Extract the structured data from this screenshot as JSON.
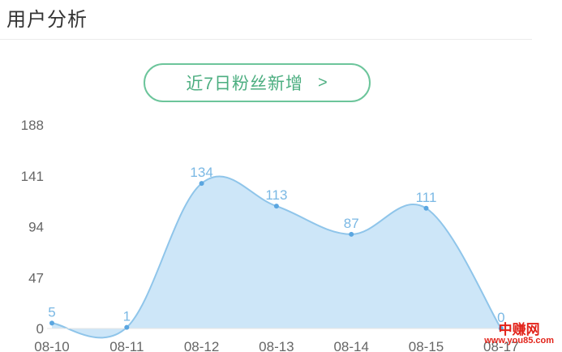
{
  "page": {
    "title": "用户分析"
  },
  "filter": {
    "label": "近7日粉丝新增",
    "chevron": ">",
    "chevron_icon": "chevron-right-icon"
  },
  "colors": {
    "accent": "#6cc59b",
    "area_fill": "#cde6f8",
    "line": "#8fc5ea",
    "point": "#5ba6e0",
    "value_label": "#7ab8e4",
    "axis_text": "#666666"
  },
  "watermark": {
    "brand": "中赚网",
    "url": "www.you85.com"
  },
  "chart_data": {
    "type": "area",
    "categories": [
      "08-10",
      "08-11",
      "08-12",
      "08-13",
      "08-14",
      "08-15",
      "08-17"
    ],
    "values": [
      5,
      1,
      134,
      113,
      87,
      111,
      0
    ],
    "y_ticks": [
      0,
      47,
      94,
      141,
      188
    ],
    "ylim": [
      0,
      188
    ],
    "smooth": true,
    "grid": false,
    "legend": "none",
    "data_labels": true,
    "title": "",
    "xlabel": "",
    "ylabel": ""
  }
}
